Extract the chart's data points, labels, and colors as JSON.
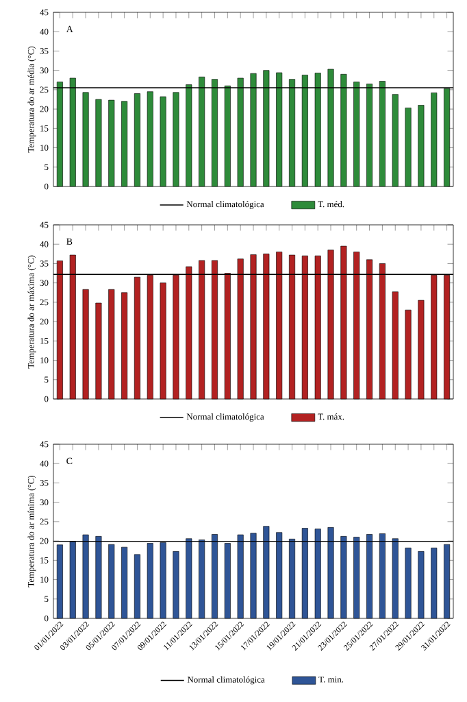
{
  "chart_data": [
    {
      "type": "bar",
      "annotations": [
        "A"
      ],
      "ylabel": "Temperatura do ar média (°C)",
      "categories": [
        null,
        null,
        null,
        null,
        null,
        null,
        null,
        null,
        null,
        null,
        null,
        null,
        null,
        null,
        null,
        null,
        null,
        null,
        null,
        null,
        null,
        null,
        null,
        null,
        null,
        null,
        null,
        null,
        null,
        null,
        null
      ],
      "series": [
        {
          "name": "T. méd.",
          "color": "#2e8b3a",
          "values": [
            27,
            28,
            24.3,
            22.5,
            22.3,
            22,
            24,
            24.5,
            23.2,
            24.3,
            26.3,
            28.3,
            27.7,
            26,
            28,
            29.2,
            30,
            29.4,
            27.7,
            28.8,
            29.3,
            30.3,
            29,
            27,
            26.5,
            27.2,
            23.8,
            20.3,
            21,
            24.2,
            25.3
          ]
        }
      ],
      "ylim": [
        0,
        45
      ],
      "yticks": [
        0,
        5,
        10,
        15,
        20,
        25,
        30,
        35,
        40,
        45
      ],
      "ref_lines": [
        {
          "axis": "y",
          "value": 25.5,
          "label": "Normal climatológica",
          "color": "#000000"
        }
      ],
      "legend": "bottom"
    },
    {
      "type": "bar",
      "annotations": [
        "B"
      ],
      "ylabel": "Temperatura do ar máxima (°C)",
      "categories": [
        null,
        null,
        null,
        null,
        null,
        null,
        null,
        null,
        null,
        null,
        null,
        null,
        null,
        null,
        null,
        null,
        null,
        null,
        null,
        null,
        null,
        null,
        null,
        null,
        null,
        null,
        null,
        null,
        null,
        null,
        null
      ],
      "series": [
        {
          "name": "T. máx.",
          "color": "#b22222",
          "values": [
            35.7,
            37.2,
            28.3,
            24.8,
            28.3,
            27.5,
            31.5,
            32,
            30,
            32,
            34.2,
            35.8,
            35.8,
            32.5,
            36.2,
            37.3,
            37.5,
            38,
            37.2,
            37,
            37,
            38.5,
            39.5,
            38,
            36,
            35,
            27.7,
            23,
            25.5,
            32,
            32
          ]
        }
      ],
      "ylim": [
        0,
        45
      ],
      "yticks": [
        0,
        5,
        10,
        15,
        20,
        25,
        30,
        35,
        40,
        45
      ],
      "ref_lines": [
        {
          "axis": "y",
          "value": 32.2,
          "label": "Normal climatológica",
          "color": "#000000"
        }
      ],
      "legend": "bottom"
    },
    {
      "type": "bar",
      "annotations": [
        "C"
      ],
      "ylabel": "Temperatura do ar mínima (°C)",
      "categories": [
        "01/01/2022",
        null,
        "03/01/2022",
        null,
        "05/01/2022",
        null,
        "07/01/2022",
        null,
        "09/01/2022",
        null,
        "11/01/2022",
        null,
        "13/01/2022",
        null,
        "15/01/2022",
        null,
        "17/01/2022",
        null,
        "19/01/2022",
        null,
        "21/01/2022",
        null,
        "23/01/2022",
        null,
        "25/01/2022",
        null,
        "27/01/2022",
        null,
        "29/01/2022",
        null,
        "31/01/2022"
      ],
      "series": [
        {
          "name": "T. min.",
          "color": "#2f5597",
          "values": [
            19,
            19.8,
            21.6,
            21.2,
            19.1,
            18.4,
            16.5,
            19.4,
            19.6,
            17.3,
            20.6,
            20.3,
            21.7,
            19.4,
            21.6,
            22,
            23.8,
            22.2,
            20.5,
            23.3,
            23.1,
            23.5,
            21.2,
            21,
            21.7,
            21.9,
            20.6,
            18.2,
            17.3,
            18.2,
            19.1
          ]
        }
      ],
      "ylim": [
        0,
        45
      ],
      "yticks": [
        0,
        5,
        10,
        15,
        20,
        25,
        30,
        35,
        40,
        45
      ],
      "ref_lines": [
        {
          "axis": "y",
          "value": 19.9,
          "label": "Normal climatológica",
          "color": "#000000"
        }
      ],
      "legend": "bottom"
    }
  ]
}
